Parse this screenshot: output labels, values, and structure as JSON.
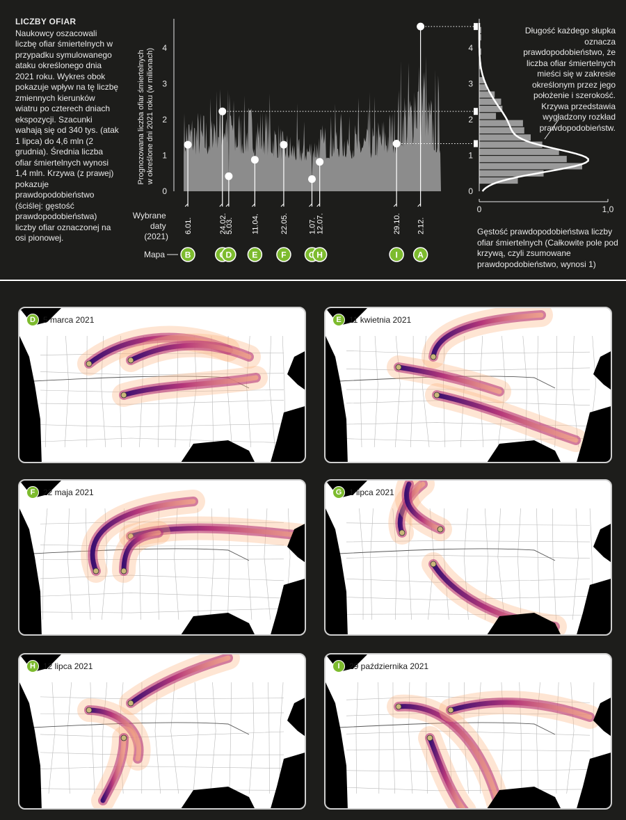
{
  "intro": {
    "heading": "LICZBY OFIAR",
    "body": "Naukowcy oszacowali liczbę ofiar śmiertelnych w przypadku symulowanego ataku określonego dnia 2021 roku. Wykres obok pokazuje wpływ na tę liczbę zmiennych kierunków wiatru po czterech dniach ekspozycji. Szacunki wahają się od 340 tys. (atak 1 lipca) do 4,6 mln (2 grudnia). Średnia liczba ofiar śmiertelnych wynosi 1,4 mln. Krzywa (z prawej) pokazuje prawdopodobieństwo (ściślej: gęstość prawdopodobieństwa) liczby ofiar oznaczonej na osi pionowej."
  },
  "annotation": "Długość każdego słupka oznacza prawdopodobieństwo, że liczba ofiar śmiertelnych mieści się w zakresie określonym przez jego położenie i szerokość. Krzywa przedstawia wygładzony rozkład prawdopodobieństw.",
  "density_label": "Gęstość prawdopodobieństwa liczby ofiar śmiertelnych (Całkowite pole pod krzywą, czyli zsumowane prawdopodobieństwo, wynosi 1)",
  "chart_data": [
    {
      "type": "area",
      "ylabel": "Prognozowana liczba ofiar śmiertelnych w określone dni 2021 roku (w milionach)",
      "ylim": [
        0,
        4.7
      ],
      "yticks": [
        "0",
        "1",
        "2",
        "3",
        "4"
      ],
      "dates_label": "Wybrane daty (2021)",
      "map_label": "Mapa",
      "highlights": [
        {
          "date": "6.01.",
          "day": 6,
          "value": 1.3,
          "map": "B"
        },
        {
          "date": "24.02.",
          "day": 55,
          "value": 2.23,
          "map": "C"
        },
        {
          "date": "5.03.",
          "day": 64,
          "value": 0.42,
          "map": "D"
        },
        {
          "date": "11.04.",
          "day": 101,
          "value": 0.88,
          "map": "E"
        },
        {
          "date": "22.05.",
          "day": 142,
          "value": 1.3,
          "map": "F"
        },
        {
          "date": "1.07.",
          "day": 182,
          "value": 0.34,
          "map": "G"
        },
        {
          "date": "12.07.",
          "day": 193,
          "value": 0.82,
          "map": "H"
        },
        {
          "date": "29.10.",
          "day": 302,
          "value": 1.33,
          "map": "I"
        },
        {
          "date": "2.12.",
          "day": 336,
          "value": 4.6,
          "map": "A"
        }
      ]
    },
    {
      "type": "bar",
      "orientation": "horizontal",
      "xlim": [
        0,
        1.0
      ],
      "xticks": [
        "0",
        "1,0"
      ],
      "ylim": [
        0,
        4.7
      ],
      "yticks": [
        "0",
        "1",
        "2",
        "3",
        "4"
      ],
      "bins": [
        {
          "from": 0.2,
          "to": 0.4,
          "density": 0.3
        },
        {
          "from": 0.4,
          "to": 0.6,
          "density": 0.5
        },
        {
          "from": 0.6,
          "to": 0.8,
          "density": 0.8
        },
        {
          "from": 0.8,
          "to": 1.0,
          "density": 0.68
        },
        {
          "from": 1.0,
          "to": 1.2,
          "density": 0.62
        },
        {
          "from": 1.2,
          "to": 1.4,
          "density": 0.49
        },
        {
          "from": 1.4,
          "to": 1.6,
          "density": 0.4
        },
        {
          "from": 1.6,
          "to": 1.8,
          "density": 0.35
        },
        {
          "from": 1.8,
          "to": 2.0,
          "density": 0.34
        },
        {
          "from": 2.0,
          "to": 2.2,
          "density": 0.13
        },
        {
          "from": 2.2,
          "to": 2.4,
          "density": 0.18
        },
        {
          "from": 2.4,
          "to": 2.6,
          "density": 0.17
        },
        {
          "from": 2.6,
          "to": 2.8,
          "density": 0.12
        },
        {
          "from": 2.8,
          "to": 3.0,
          "density": 0.06
        },
        {
          "from": 3.0,
          "to": 3.2,
          "density": 0.04
        },
        {
          "from": 3.4,
          "to": 3.6,
          "density": 0.015
        },
        {
          "from": 3.8,
          "to": 4.0,
          "density": 0.015
        },
        {
          "from": 4.2,
          "to": 4.4,
          "density": 0.015
        },
        {
          "from": 4.4,
          "to": 4.6,
          "density": 0.015
        }
      ]
    }
  ],
  "maps": [
    {
      "letter": "D",
      "title": "5 marca 2021"
    },
    {
      "letter": "E",
      "title": "11 kwietnia 2021"
    },
    {
      "letter": "F",
      "title": "22 maja 2021"
    },
    {
      "letter": "G",
      "title": "1 lipca 2021"
    },
    {
      "letter": "H",
      "title": "12 lipca 2021"
    },
    {
      "letter": "I",
      "title": "29 października 2021"
    }
  ],
  "colors": {
    "background": "#1d1d1b",
    "area": "#8c8c8c",
    "badge": "#7dbb2e",
    "plume_dark": "#3b0f70",
    "plume_mid": "#b5367a",
    "plume_light": "#fcb582"
  }
}
